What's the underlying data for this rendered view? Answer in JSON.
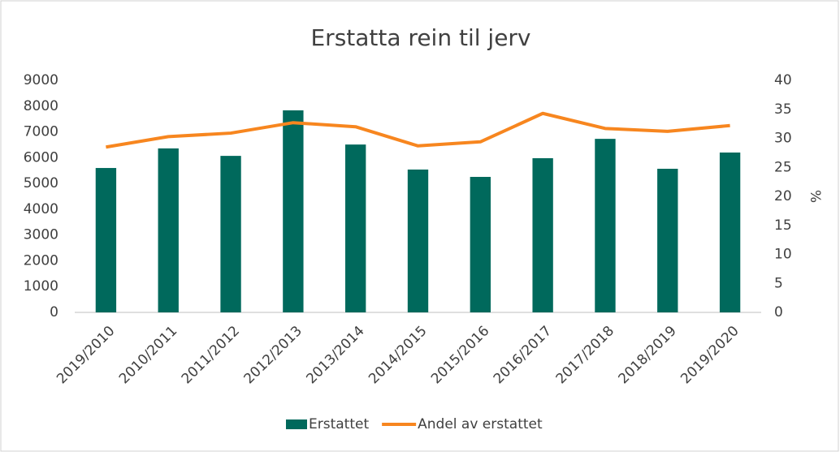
{
  "chart_data": {
    "type": "bar_line",
    "title": "Erstatta rein til jerv",
    "categories": [
      "2019/2010",
      "2010/2011",
      "2011/2012",
      "2012/2013",
      "2013/2014",
      "2014/2015",
      "2015/2016",
      "2016/2017",
      "2017/2018",
      "2018/2019",
      "2019/2020"
    ],
    "series": [
      {
        "name": "Erstattet",
        "type": "bar",
        "color": "#00695c",
        "values": [
          5600,
          6360,
          6070,
          7835,
          6510,
          5540,
          5255,
          5980,
          6730,
          5570,
          6200
        ]
      },
      {
        "name": "Andel av erstattet",
        "type": "line",
        "axis": "y2",
        "color": "#f7861f",
        "values": [
          28.5,
          30.3,
          30.9,
          32.7,
          32.0,
          28.7,
          29.4,
          34.3,
          31.7,
          31.2,
          32.2
        ]
      }
    ],
    "y2_label": "%",
    "ylim": [
      0,
      9000
    ],
    "yticks": [
      0,
      1000,
      2000,
      3000,
      4000,
      5000,
      6000,
      7000,
      8000,
      9000
    ],
    "y2lim": [
      0,
      40
    ],
    "y2ticks": [
      0,
      5,
      10,
      15,
      20,
      25,
      30,
      35,
      40
    ],
    "grid": false,
    "legend": "bottom"
  }
}
